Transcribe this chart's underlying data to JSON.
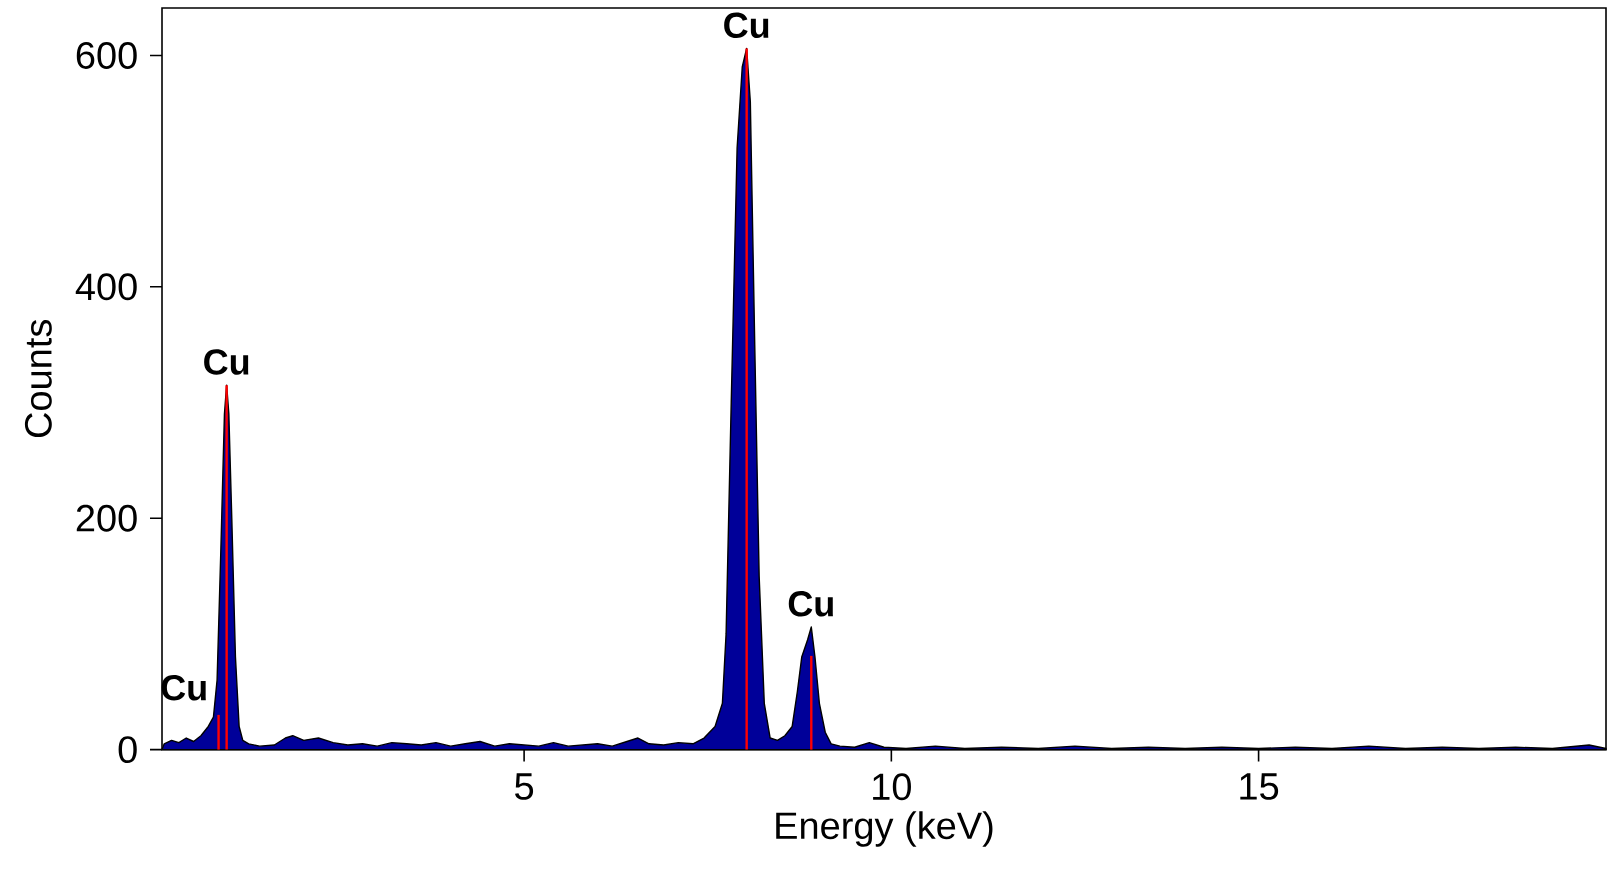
{
  "chart_data": {
    "type": "area",
    "xlabel": "Energy (keV)",
    "ylabel": "Counts",
    "xlim": [
      0.07,
      19.73
    ],
    "ylim": [
      0,
      641
    ],
    "xticks": [
      5,
      10,
      15
    ],
    "yticks": [
      0,
      200,
      400,
      600
    ],
    "grid": false,
    "series": [
      {
        "color": "#000099",
        "x": [
          0.07,
          0.1,
          0.2,
          0.3,
          0.4,
          0.5,
          0.6,
          0.7,
          0.77,
          0.82,
          0.87,
          0.92,
          0.95,
          0.98,
          1.02,
          1.07,
          1.12,
          1.17,
          1.25,
          1.4,
          1.6,
          1.75,
          1.85,
          2.0,
          2.2,
          2.4,
          2.6,
          2.8,
          3.0,
          3.2,
          3.4,
          3.6,
          3.8,
          4.0,
          4.2,
          4.4,
          4.6,
          4.8,
          5.0,
          5.2,
          5.4,
          5.6,
          5.8,
          6.0,
          6.2,
          6.4,
          6.55,
          6.7,
          6.9,
          7.1,
          7.3,
          7.45,
          7.6,
          7.7,
          7.75,
          7.82,
          7.9,
          7.97,
          8.03,
          8.08,
          8.14,
          8.2,
          8.27,
          8.35,
          8.45,
          8.55,
          8.65,
          8.72,
          8.78,
          8.86,
          8.91,
          8.96,
          9.02,
          9.1,
          9.18,
          9.3,
          9.5,
          9.7,
          9.9,
          10.2,
          10.6,
          11.0,
          11.5,
          12.0,
          12.5,
          13.0,
          13.5,
          14.0,
          14.5,
          15.0,
          15.5,
          16.0,
          16.5,
          17.0,
          17.5,
          18.0,
          18.5,
          19.0,
          19.5,
          19.73
        ],
        "values": [
          0,
          5,
          8,
          6,
          10,
          7,
          12,
          20,
          28,
          60,
          170,
          290,
          315,
          290,
          200,
          80,
          20,
          8,
          5,
          3,
          4,
          10,
          12,
          8,
          10,
          6,
          4,
          5,
          3,
          6,
          5,
          4,
          6,
          3,
          5,
          7,
          3,
          5,
          4,
          3,
          6,
          3,
          4,
          5,
          3,
          7,
          10,
          5,
          4,
          6,
          5,
          10,
          20,
          40,
          100,
          300,
          520,
          590,
          606,
          560,
          350,
          150,
          40,
          10,
          8,
          12,
          20,
          50,
          80,
          95,
          106,
          80,
          40,
          15,
          5,
          3,
          2,
          6,
          2,
          1,
          3,
          1,
          2,
          1,
          3,
          1,
          2,
          1,
          2,
          1,
          2,
          1,
          3,
          1,
          2,
          1,
          2,
          1,
          4,
          1
        ]
      },
      {
        "type": "bar",
        "color": "#ff0000",
        "x": [
          0.84,
          0.95,
          8.03,
          8.91
        ],
        "values": [
          30,
          315,
          606,
          81
        ]
      }
    ],
    "annotations": [
      {
        "text": "Cu",
        "x": 0.84,
        "y": 30
      },
      {
        "text": "Cu",
        "x": 0.95,
        "y": 315
      },
      {
        "text": "Cu",
        "x": 8.03,
        "y": 606
      },
      {
        "text": "Cu",
        "x": 8.91,
        "y": 106
      }
    ]
  }
}
